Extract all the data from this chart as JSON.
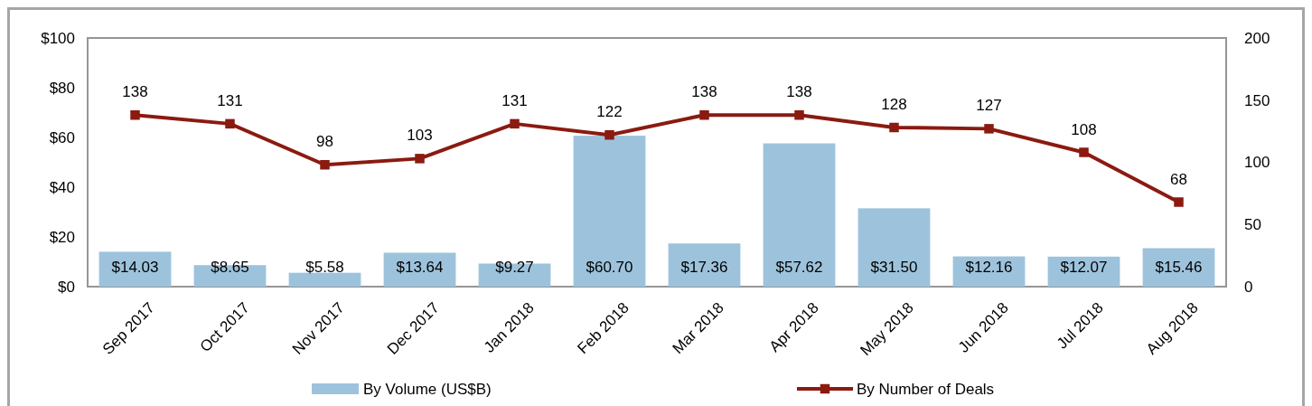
{
  "chart_data": {
    "type": "bar",
    "categories": [
      "Sep 2017",
      "Oct 2017",
      "Nov 2017",
      "Dec 2017",
      "Jan 2018",
      "Feb 2018",
      "Mar 2018",
      "Apr 2018",
      "May 2018",
      "Jun 2018",
      "Jul 2018",
      "Aug 2018"
    ],
    "series": [
      {
        "name": "By Volume (US$B)",
        "color": "#9dc3dc",
        "values": [
          14.03,
          8.65,
          5.58,
          13.64,
          9.27,
          60.7,
          17.36,
          57.62,
          31.5,
          12.16,
          12.07,
          15.46
        ],
        "value_labels": [
          "$14.03",
          "$8.65",
          "$5.58",
          "$13.64",
          "$9.27",
          "$60.70",
          "$17.36",
          "$57.62",
          "$31.50",
          "$12.16",
          "$12.07",
          "$15.46"
        ]
      },
      {
        "name": "By Number of Deals",
        "type": "line",
        "axis": "y2",
        "color": "#8b1a10",
        "marker": "square",
        "values": [
          138,
          131,
          98,
          103,
          131,
          122,
          138,
          138,
          128,
          127,
          108,
          68
        ],
        "value_labels": [
          "138",
          "131",
          "98",
          "103",
          "131",
          "122",
          "138",
          "138",
          "128",
          "127",
          "108",
          "68"
        ]
      }
    ],
    "ylim": [
      0,
      100
    ],
    "yticks": [
      {
        "value": 0,
        "label": "$0"
      },
      {
        "value": 20,
        "label": "$20"
      },
      {
        "value": 40,
        "label": "$40"
      },
      {
        "value": 60,
        "label": "$60"
      },
      {
        "value": 80,
        "label": "$80"
      },
      {
        "value": 100,
        "label": "$100"
      }
    ],
    "y2lim": [
      0,
      200
    ],
    "y2ticks": [
      0,
      50,
      100,
      150,
      200
    ],
    "legend": "bottom",
    "grid": false
  }
}
